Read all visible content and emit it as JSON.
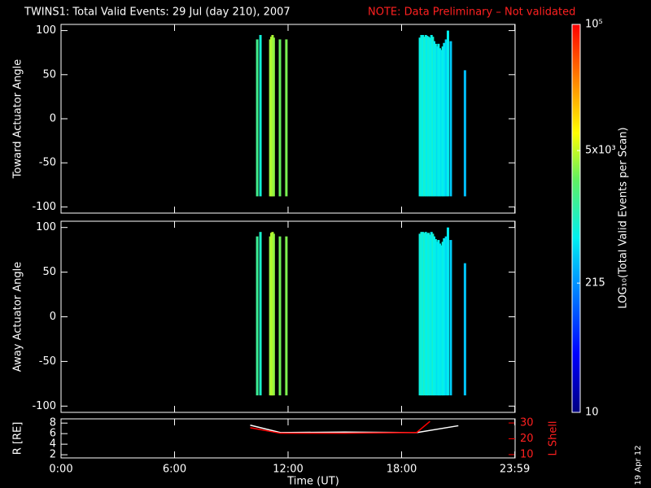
{
  "chart_data": {
    "type": "multi-panel",
    "title": "TWINS1: Total Valid Events: 29 Jul (day 210), 2007",
    "note": "NOTE: Data Preliminary – Not validated",
    "date_stamp": "19 Apr 12",
    "xlabel": "Time (UT)",
    "xlim": [
      0,
      24
    ],
    "xticks": [
      {
        "value": 0,
        "label": "0:00"
      },
      {
        "value": 6,
        "label": "6:00"
      },
      {
        "value": 12,
        "label": "12:00"
      },
      {
        "value": 18,
        "label": "18:00"
      },
      {
        "value": 23.983,
        "label": "23:59"
      }
    ],
    "colorbar": {
      "label": "LOG₁₀(Total Valid Events per Scan)",
      "lim": [
        10,
        100000
      ],
      "log": true,
      "ticks": [
        10,
        215,
        {
          "value": 5000,
          "label": "5x10³"
        },
        {
          "value": 100000,
          "label": "10⁵"
        }
      ]
    },
    "panels": [
      {
        "type": "spectrogram",
        "ylabel": "Toward Actuator Angle",
        "ylim": [
          -107,
          107
        ],
        "yticks": [
          -100,
          -50,
          0,
          50,
          100
        ],
        "ybottom": -88,
        "x": [
          10.37,
          10.54,
          11.06,
          11.12,
          11.18,
          11.24,
          11.57,
          11.91,
          18.97,
          19.05,
          19.12,
          19.2,
          19.28,
          19.35,
          19.42,
          19.5,
          19.58,
          19.65,
          19.72,
          19.8,
          19.88,
          19.95,
          20.02,
          20.1,
          20.18,
          20.25,
          20.35,
          20.45,
          20.6,
          21.35
        ],
        "tops": [
          90,
          95,
          90,
          93,
          95,
          92,
          90,
          90,
          92,
          95,
          95,
          93,
          95,
          94,
          93,
          92,
          95,
          93,
          88,
          85,
          82,
          85,
          80,
          78,
          82,
          86,
          90,
          100,
          88,
          55
        ],
        "values": [
          1600,
          800,
          3800,
          4500,
          4200,
          3500,
          2600,
          3000,
          700,
          800,
          650,
          900,
          750,
          600,
          800,
          700,
          650,
          850,
          600,
          750,
          500,
          700,
          650,
          550,
          700,
          600,
          450,
          650,
          400,
          350
        ]
      },
      {
        "type": "spectrogram",
        "ylabel": "Away Actuator Angle",
        "ylim": [
          -107,
          107
        ],
        "yticks": [
          -100,
          -50,
          0,
          50,
          100
        ],
        "ybottom": -88,
        "x": [
          10.37,
          10.54,
          11.06,
          11.12,
          11.18,
          11.24,
          11.57,
          11.91,
          18.97,
          19.05,
          19.12,
          19.2,
          19.28,
          19.35,
          19.42,
          19.5,
          19.58,
          19.65,
          19.72,
          19.8,
          19.88,
          19.95,
          20.02,
          20.1,
          20.18,
          20.25,
          20.35,
          20.45,
          20.6,
          21.35
        ],
        "tops": [
          90,
          95,
          90,
          94,
          95,
          93,
          90,
          90,
          93,
          95,
          95,
          94,
          95,
          93,
          94,
          92,
          95,
          93,
          90,
          87,
          84,
          86,
          82,
          80,
          84,
          88,
          90,
          100,
          86,
          60
        ],
        "values": [
          1500,
          900,
          3700,
          4400,
          4600,
          3600,
          2800,
          3100,
          750,
          850,
          700,
          950,
          700,
          650,
          820,
          720,
          600,
          880,
          650,
          700,
          520,
          680,
          600,
          580,
          720,
          640,
          480,
          600,
          420,
          380
        ]
      },
      {
        "type": "line",
        "ylabel": "R [RE]",
        "y2label": "L Shell",
        "ylim": [
          1.4,
          8.8
        ],
        "yticks": [
          2,
          4,
          6,
          8
        ],
        "y2lim": [
          7.9,
          32.6
        ],
        "y2ticks": [
          10,
          20,
          30
        ],
        "series": [
          {
            "color": "#ffffff",
            "x": [
              10,
              11.6,
              15,
              18.8,
              21
            ],
            "values": [
              7.6,
              6.2,
              6.3,
              6.2,
              7.5
            ]
          },
          {
            "color": "#ff0000",
            "axis": "y2",
            "x": [
              10,
              11.6,
              15,
              18.8,
              19.5
            ],
            "values": [
              27,
              23.5,
              23.5,
              24,
              31
            ]
          }
        ]
      }
    ]
  }
}
